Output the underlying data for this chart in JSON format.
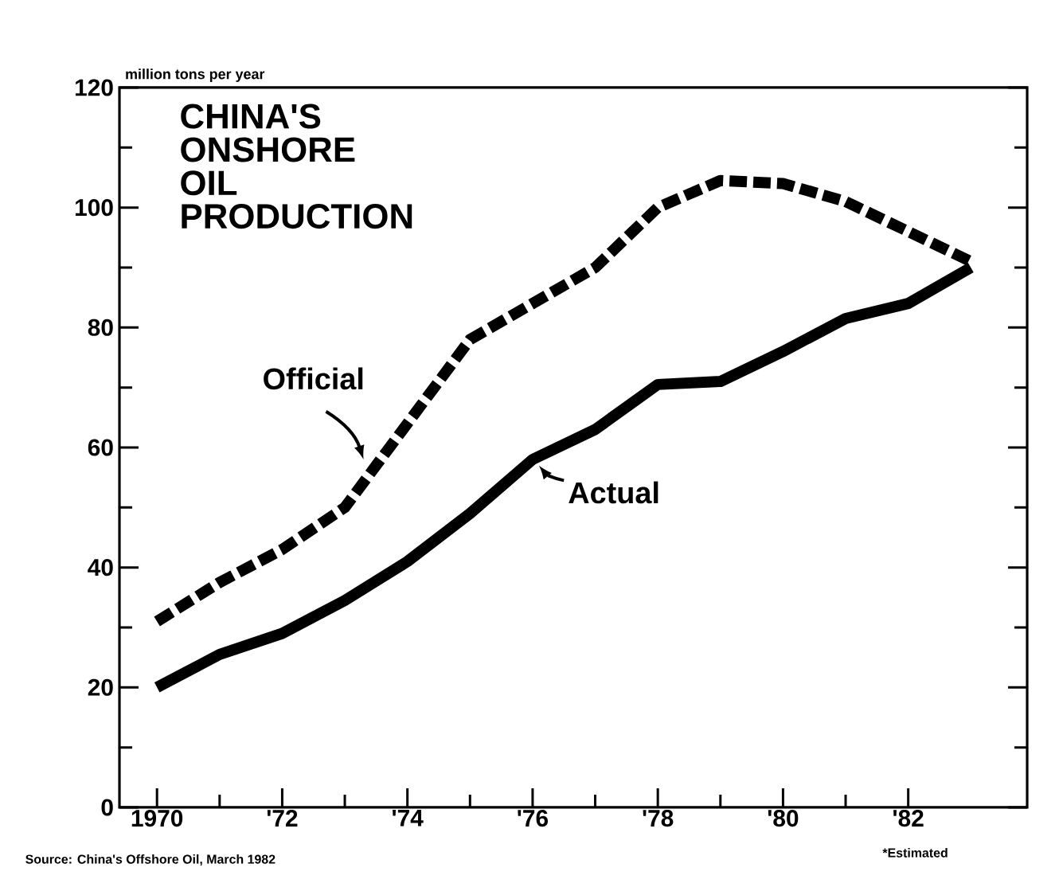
{
  "chart_data": {
    "type": "line",
    "title": "CHINA'S ONSHORE OIL PRODUCTION",
    "ylabel": "million tons per year",
    "x": [
      1970,
      1971,
      1972,
      1973,
      1974,
      1975,
      1976,
      1977,
      1978,
      1979,
      1980,
      1981,
      1982,
      1983
    ],
    "series": [
      {
        "name": "Official",
        "color": "#000000",
        "line_style": "dashed",
        "values": [
          31,
          37.5,
          43,
          50,
          64,
          78,
          84,
          90,
          100,
          104.5,
          104,
          101,
          96,
          91
        ]
      },
      {
        "name": "Actual",
        "color": "#000000",
        "line_style": "solid",
        "values": [
          20,
          25.5,
          29,
          34.5,
          41,
          49,
          58,
          63,
          70.5,
          71,
          76,
          81.5,
          84,
          90
        ]
      }
    ],
    "xlim": [
      1969.4,
      1983.9
    ],
    "ylim": [
      0,
      120
    ],
    "xticks": [
      {
        "value": 1970,
        "label": "1970"
      },
      {
        "value": 1972,
        "label": "'72"
      },
      {
        "value": 1974,
        "label": "'74"
      },
      {
        "value": 1976,
        "label": "'76"
      },
      {
        "value": 1978,
        "label": "'78"
      },
      {
        "value": 1980,
        "label": "'80"
      },
      {
        "value": 1982,
        "label": "'82"
      }
    ],
    "yticks": [
      0,
      20,
      40,
      60,
      80,
      100,
      120
    ],
    "grid": false,
    "marker": "none",
    "annotations": [
      "Source: China's Offshore Oil, March 1982",
      "*Estimated"
    ]
  }
}
